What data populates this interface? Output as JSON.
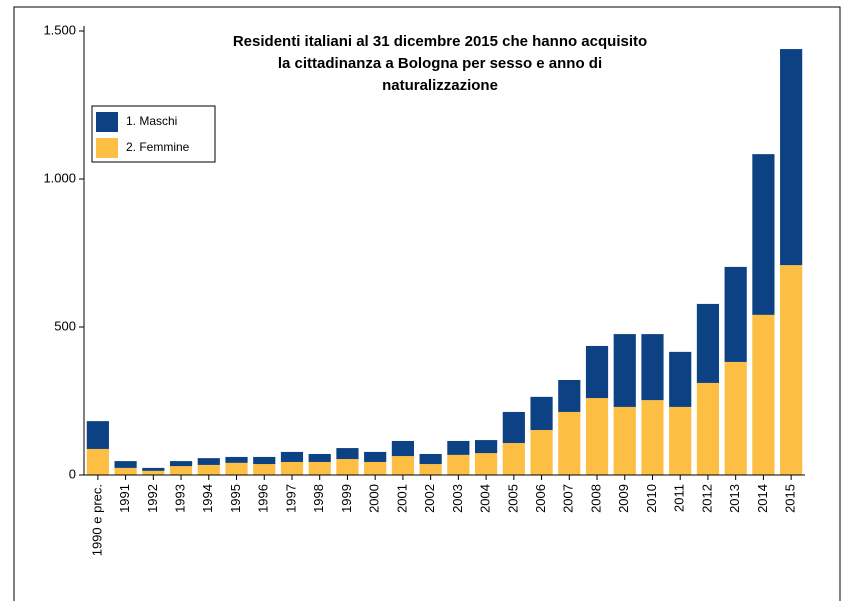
{
  "chart_data": {
    "type": "stacked_bar",
    "title": [
      "Residenti italiani al 31 dicembre 2015 che hanno acquisito",
      "la cittadinanza a Bologna per sesso e anno di",
      "naturalizzazione"
    ],
    "categories": [
      "1990 e prec.",
      "1991",
      "1992",
      "1993",
      "1994",
      "1995",
      "1996",
      "1997",
      "1998",
      "1999",
      "2000",
      "2001",
      "2002",
      "2003",
      "2004",
      "2005",
      "2006",
      "2007",
      "2008",
      "2009",
      "2010",
      "2011",
      "2012",
      "2013",
      "2014",
      "2015"
    ],
    "series": [
      {
        "name": "1. Maschi",
        "color": "#0c4283",
        "values": [
          94,
          23,
          10,
          17,
          23,
          20,
          24,
          34,
          27,
          37,
          34,
          51,
          34,
          47,
          44,
          105,
          112,
          108,
          176,
          246,
          223,
          186,
          267,
          321,
          543,
          730
        ]
      },
      {
        "name": "2. Femmine",
        "color": "#fcbe43",
        "values": [
          88,
          24,
          14,
          30,
          34,
          41,
          37,
          44,
          44,
          54,
          44,
          64,
          37,
          68,
          74,
          108,
          152,
          213,
          260,
          230,
          253,
          230,
          311,
          382,
          541,
          709
        ]
      }
    ],
    "ylim": [
      0,
      1500
    ],
    "yticks": [
      0,
      500,
      {
        "value": 1000,
        "label": "1.000"
      },
      {
        "value": 1500,
        "label": "1.500"
      }
    ],
    "legend": "upper left"
  }
}
